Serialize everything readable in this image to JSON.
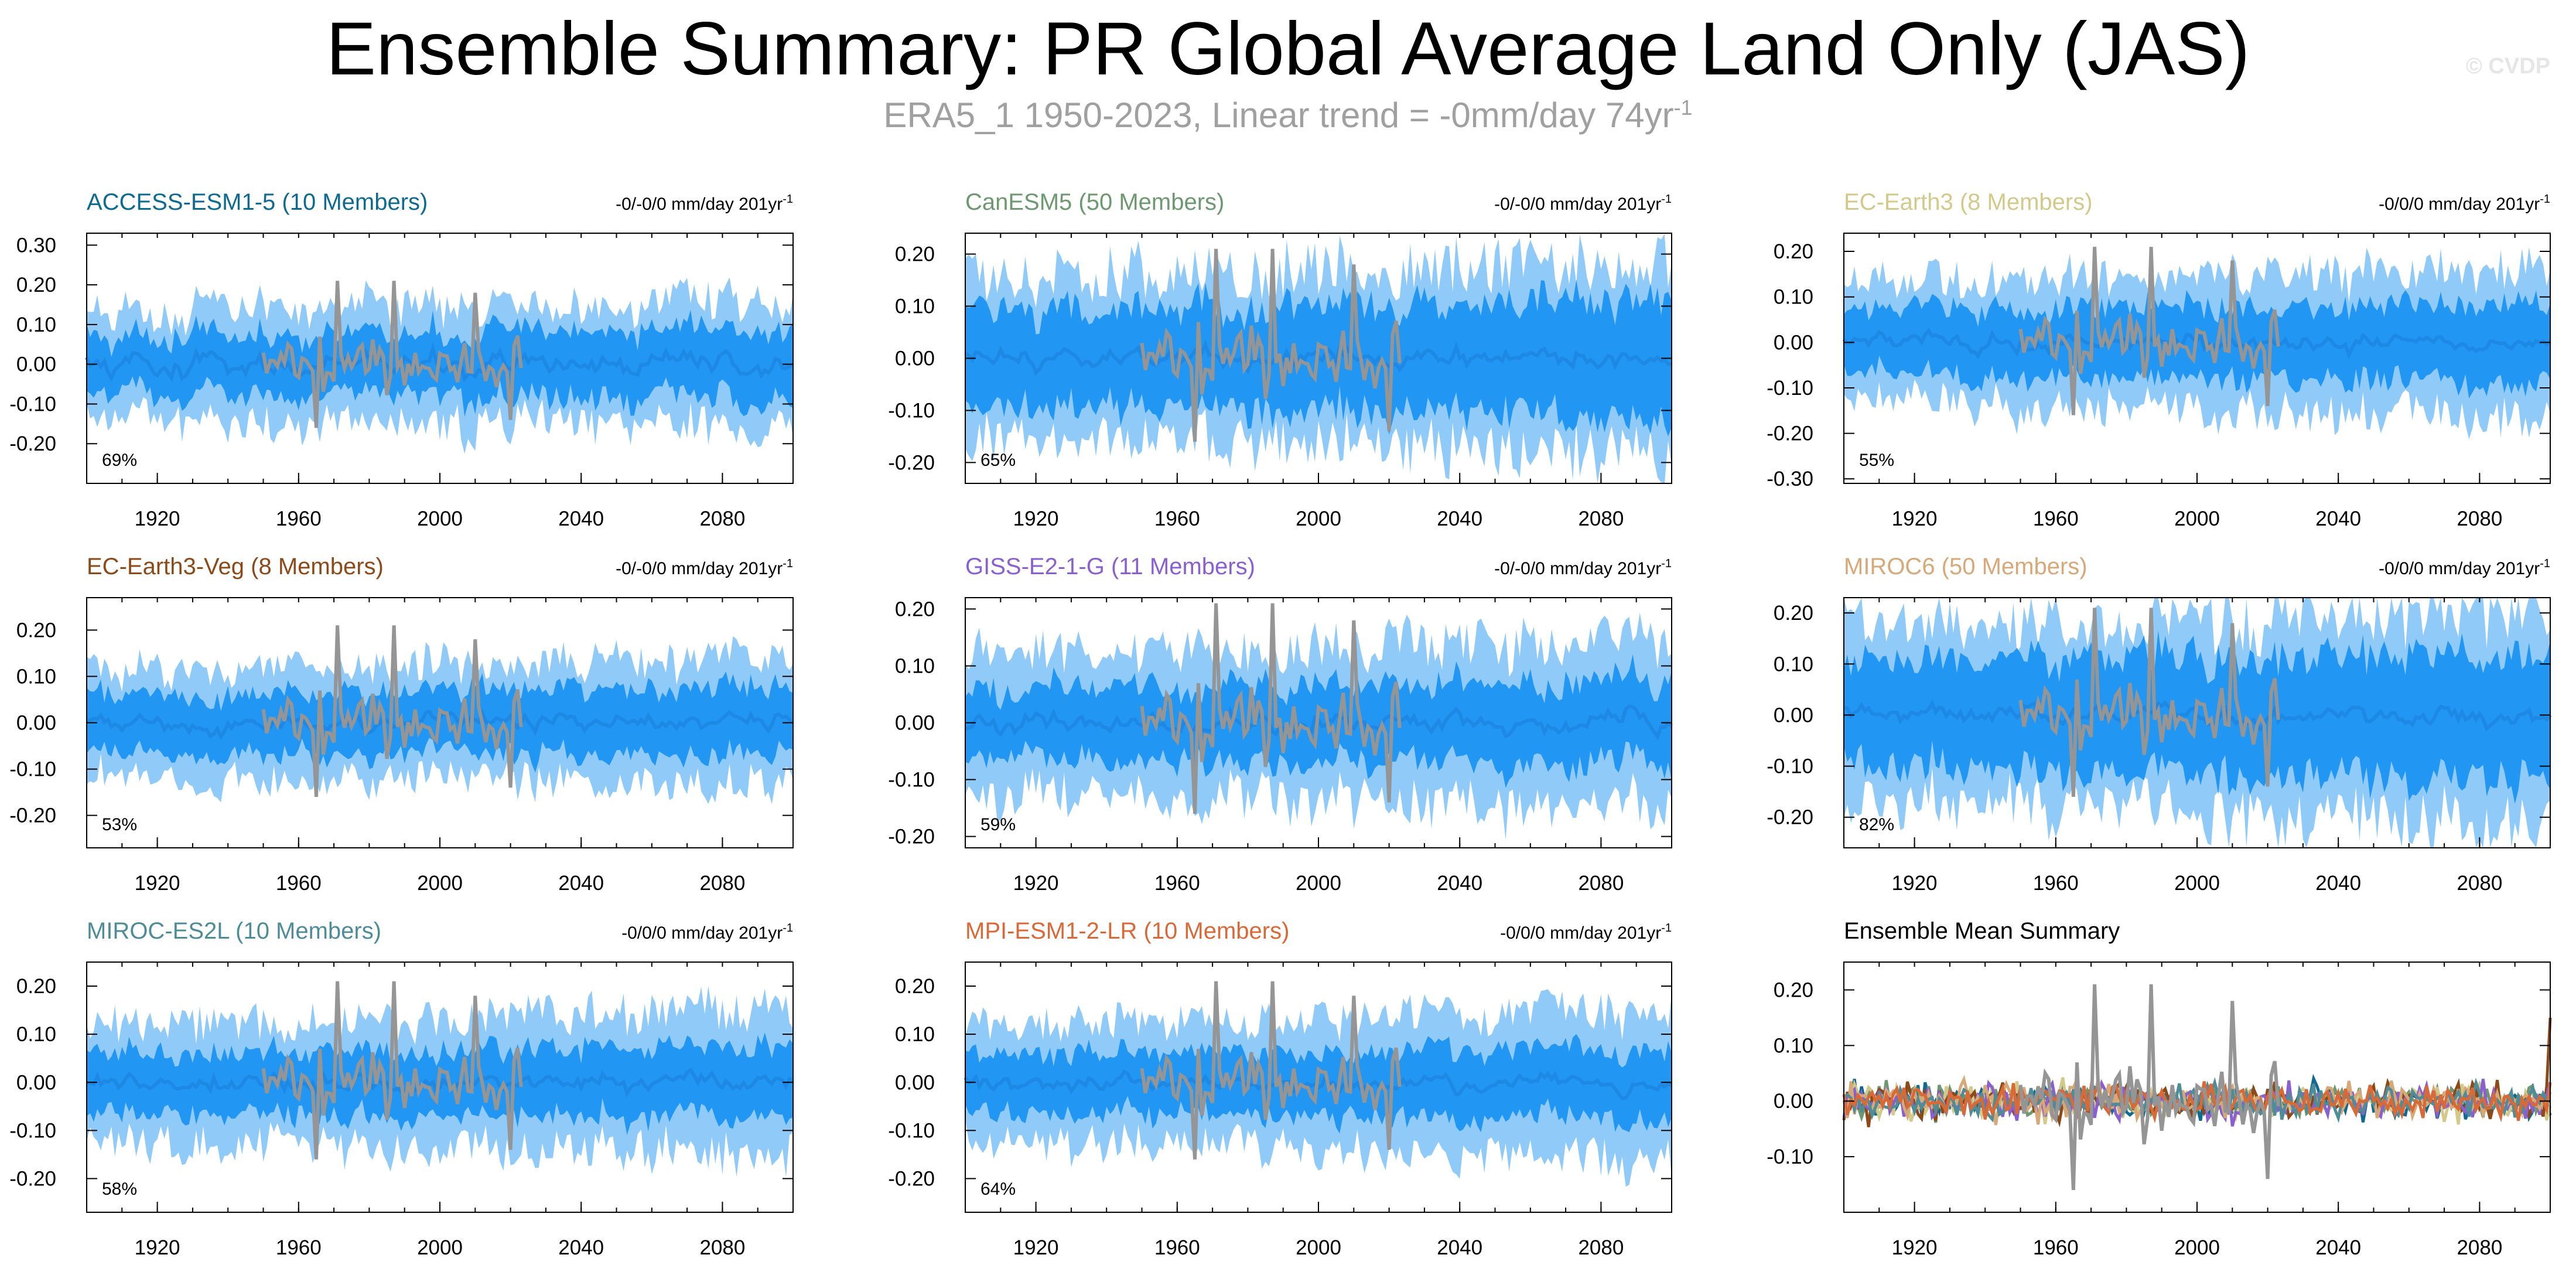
{
  "title": "Ensemble Summary: PR Global Average Land Only (JAS)",
  "subtitle": "ERA5_1 1950-2023, Linear trend = -0mm/day 74yr",
  "subtitle_sup": "-1",
  "watermark": "© CVDP",
  "colors": {
    "observed": "#959595",
    "ensemble_mean": "#1e88e5",
    "inner_band": "#2196f3",
    "outer_band": "#90caf9"
  },
  "chart_data": [
    {
      "type": "area",
      "title": "ACCESS-ESM1-5 (10 Members)",
      "title_color": "#0f6a92",
      "trend": "-0/-0/0 mm/day 201yr",
      "trend_sup": "-1",
      "percent": "69%",
      "xlim": [
        1900,
        2100
      ],
      "ylim": [
        -0.3,
        0.33
      ],
      "x_ticks": [
        1920,
        1960,
        2000,
        2040,
        2080
      ],
      "y_ticks": [
        -0.2,
        -0.1,
        0.0,
        0.1,
        0.2,
        0.3
      ],
      "y_tick_labels": [
        "-0.20",
        "-0.10",
        "0.00",
        "0.10",
        "0.20",
        "0.30"
      ],
      "observed": {
        "x_start": 1950,
        "x_end": 2023
      },
      "mean_amp": 0.03,
      "inner_amp": 0.07,
      "outer_amp": 0.13
    },
    {
      "type": "area",
      "title": "CanESM5 (50 Members)",
      "title_color": "#6e9870",
      "trend": "-0/-0/0 mm/day 201yr",
      "trend_sup": "-1",
      "percent": "65%",
      "xlim": [
        1900,
        2100
      ],
      "ylim": [
        -0.24,
        0.24
      ],
      "x_ticks": [
        1920,
        1960,
        2000,
        2040,
        2080
      ],
      "y_ticks": [
        -0.2,
        -0.1,
        0.0,
        0.1,
        0.2
      ],
      "y_tick_labels": [
        "-0.20",
        "-0.10",
        "0.00",
        "0.10",
        "0.20"
      ],
      "observed": {
        "x_start": 1950,
        "x_end": 2023
      },
      "mean_amp": 0.02,
      "inner_amp": 0.09,
      "outer_amp": 0.15
    },
    {
      "type": "area",
      "title": "EC-Earth3 (8 Members)",
      "title_color": "#d2c98a",
      "trend": "-0/0/0 mm/day 201yr",
      "trend_sup": "-1",
      "percent": "55%",
      "xlim": [
        1900,
        2100
      ],
      "ylim": [
        -0.31,
        0.24
      ],
      "x_ticks": [
        1920,
        1960,
        2000,
        2040,
        2080
      ],
      "y_ticks": [
        -0.3,
        -0.2,
        -0.1,
        0.0,
        0.1,
        0.2
      ],
      "y_tick_labels": [
        "-0.30",
        "-0.20",
        "-0.10",
        "0.00",
        "0.10",
        "0.20"
      ],
      "observed": {
        "x_start": 1950,
        "x_end": 2023
      },
      "mean_amp": 0.02,
      "inner_amp": 0.07,
      "outer_amp": 0.13
    },
    {
      "type": "area",
      "title": "EC-Earth3-Veg (8 Members)",
      "title_color": "#8b4a18",
      "trend": "-0/-0/0 mm/day 201yr",
      "trend_sup": "-1",
      "percent": "53%",
      "xlim": [
        1900,
        2100
      ],
      "ylim": [
        -0.27,
        0.27
      ],
      "x_ticks": [
        1920,
        1960,
        2000,
        2040,
        2080
      ],
      "y_ticks": [
        -0.2,
        -0.1,
        0.0,
        0.1,
        0.2
      ],
      "y_tick_labels": [
        "-0.20",
        "-0.10",
        "0.00",
        "0.10",
        "0.20"
      ],
      "observed": {
        "x_start": 1950,
        "x_end": 2023
      },
      "mean_amp": 0.02,
      "inner_amp": 0.06,
      "outer_amp": 0.11
    },
    {
      "type": "area",
      "title": "GISS-E2-1-G (11 Members)",
      "title_color": "#8a5fd0",
      "trend": "-0/-0/0 mm/day 201yr",
      "trend_sup": "-1",
      "percent": "59%",
      "xlim": [
        1900,
        2100
      ],
      "ylim": [
        -0.22,
        0.22
      ],
      "x_ticks": [
        1920,
        1960,
        2000,
        2040,
        2080
      ],
      "y_ticks": [
        -0.2,
        -0.1,
        0.0,
        0.1,
        0.2
      ],
      "y_tick_labels": [
        "-0.20",
        "-0.10",
        "0.00",
        "0.10",
        "0.20"
      ],
      "observed": {
        "x_start": 1950,
        "x_end": 2023
      },
      "mean_amp": 0.02,
      "inner_amp": 0.06,
      "outer_amp": 0.12
    },
    {
      "type": "area",
      "title": "MIROC6 (50 Members)",
      "title_color": "#d7a878",
      "trend": "-0/0/0 mm/day 201yr",
      "trend_sup": "-1",
      "percent": "82%",
      "xlim": [
        1900,
        2100
      ],
      "ylim": [
        -0.26,
        0.23
      ],
      "x_ticks": [
        1920,
        1960,
        2000,
        2040,
        2080
      ],
      "y_ticks": [
        -0.2,
        -0.1,
        0.0,
        0.1,
        0.2
      ],
      "y_tick_labels": [
        "-0.20",
        "-0.10",
        "0.00",
        "0.10",
        "0.20"
      ],
      "observed": {
        "x_start": 1950,
        "x_end": 2023
      },
      "mean_amp": 0.02,
      "inner_amp": 0.1,
      "outer_amp": 0.17
    },
    {
      "type": "area",
      "title": "MIROC-ES2L (10 Members)",
      "title_color": "#4e8c98",
      "trend": "-0/0/0 mm/day 201yr",
      "trend_sup": "-1",
      "percent": "58%",
      "xlim": [
        1900,
        2100
      ],
      "ylim": [
        -0.27,
        0.25
      ],
      "x_ticks": [
        1920,
        1960,
        2000,
        2040,
        2080
      ],
      "y_ticks": [
        -0.2,
        -0.1,
        0.0,
        0.1,
        0.2
      ],
      "y_tick_labels": [
        "-0.20",
        "-0.10",
        "0.00",
        "0.10",
        "0.20"
      ],
      "observed": {
        "x_start": 1950,
        "x_end": 2023
      },
      "mean_amp": 0.02,
      "inner_amp": 0.06,
      "outer_amp": 0.12
    },
    {
      "type": "area",
      "title": "MPI-ESM1-2-LR (10 Members)",
      "title_color": "#d96a38",
      "trend": "-0/0/0 mm/day 201yr",
      "trend_sup": "-1",
      "percent": "64%",
      "xlim": [
        1900,
        2100
      ],
      "ylim": [
        -0.27,
        0.25
      ],
      "x_ticks": [
        1920,
        1960,
        2000,
        2040,
        2080
      ],
      "y_ticks": [
        -0.2,
        -0.1,
        0.0,
        0.1,
        0.2
      ],
      "y_tick_labels": [
        "-0.20",
        "-0.10",
        "0.00",
        "0.10",
        "0.20"
      ],
      "observed": {
        "x_start": 1950,
        "x_end": 2023
      },
      "mean_amp": 0.02,
      "inner_amp": 0.06,
      "outer_amp": 0.12
    },
    {
      "type": "line",
      "title": "Ensemble Mean Summary",
      "title_color": "#000000",
      "xlim": [
        1900,
        2100
      ],
      "ylim": [
        -0.2,
        0.25
      ],
      "x_ticks": [
        1920,
        1960,
        2000,
        2040,
        2080
      ],
      "y_ticks": [
        -0.1,
        0.0,
        0.1,
        0.2
      ],
      "y_tick_labels": [
        "-0.10",
        "0.00",
        "0.10",
        "0.20"
      ],
      "observed": {
        "x_start": 1950,
        "x_end": 2023
      },
      "series_colors": [
        "#0f6a92",
        "#6e9870",
        "#d2c98a",
        "#8b4a18",
        "#8a5fd0",
        "#d7a878",
        "#4e8c98",
        "#d96a38"
      ]
    }
  ]
}
